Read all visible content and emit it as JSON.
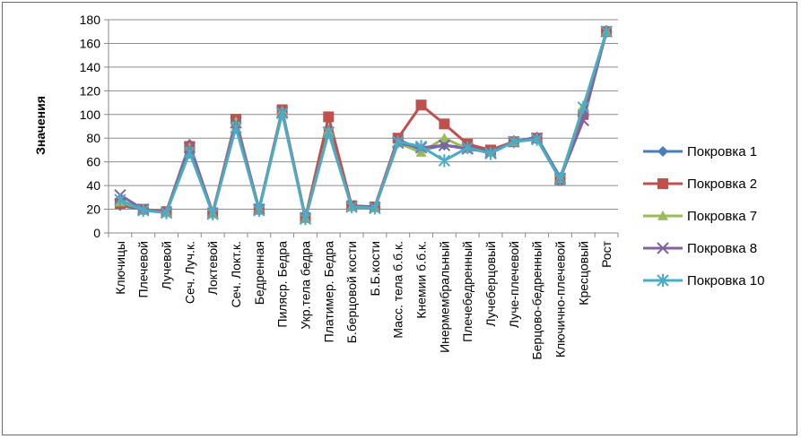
{
  "chart_data": {
    "type": "line",
    "title": "",
    "ylabel": "Значения",
    "xlabel": "",
    "ylim": [
      0,
      180
    ],
    "yticks": [
      0,
      20,
      40,
      60,
      80,
      100,
      120,
      140,
      160,
      180
    ],
    "grid": "horizontal",
    "legend_position": "right",
    "categories": [
      "Ключицы",
      "Плечевой",
      "Лучевой",
      "Сеч. Луч.к.",
      "Локтевой",
      "Сеч. Локт.к.",
      "Бедренная",
      "Пиляср. Бедра",
      "Укр.тела бедра",
      "Платимер. Бедра",
      "Б.берцовой кости",
      "Б.Б.кости",
      "Масс. тела б.б.к.",
      "Кнемии б.б.к.",
      "Инермембральный",
      "Плечебедренный",
      "Лучеберцовый",
      "Луче-плечевой",
      "Берцово-бедренный",
      "Ключично-плечевой",
      "Кресцовый",
      "Рост"
    ],
    "series": [
      {
        "name": "Покровка 1",
        "color": "#4a7ebb",
        "marker": "diamond",
        "values": [
          23,
          20,
          18,
          75,
          17,
          95,
          20,
          104,
          13,
          87,
          23,
          22,
          79,
          70,
          74,
          72,
          70,
          77,
          81,
          47,
          102,
          170
        ]
      },
      {
        "name": "Покровка 2",
        "color": "#c0504d",
        "marker": "square",
        "values": [
          25,
          20,
          18,
          73,
          17,
          96,
          20,
          104,
          13,
          98,
          23,
          22,
          80,
          108,
          92,
          75,
          70,
          77,
          80,
          45,
          100,
          170
        ]
      },
      {
        "name": "Покровка 7",
        "color": "#9bbb59",
        "marker": "triangle",
        "values": [
          26,
          20,
          17,
          72,
          16,
          94,
          20,
          103,
          12,
          86,
          22,
          21,
          76,
          68,
          80,
          71,
          68,
          77,
          80,
          46,
          107,
          170
        ]
      },
      {
        "name": "Покровка 8",
        "color": "#8064a2",
        "marker": "x",
        "values": [
          32,
          20,
          17,
          72,
          16,
          93,
          20,
          102,
          12,
          85,
          22,
          21,
          76,
          72,
          74,
          71,
          68,
          77,
          80,
          46,
          95,
          170
        ]
      },
      {
        "name": "Покровка 10",
        "color": "#4bacc6",
        "marker": "star",
        "values": [
          28,
          19,
          17,
          68,
          16,
          89,
          19,
          101,
          12,
          85,
          22,
          21,
          77,
          73,
          61,
          72,
          67,
          77,
          79,
          45,
          106,
          170
        ]
      }
    ]
  }
}
